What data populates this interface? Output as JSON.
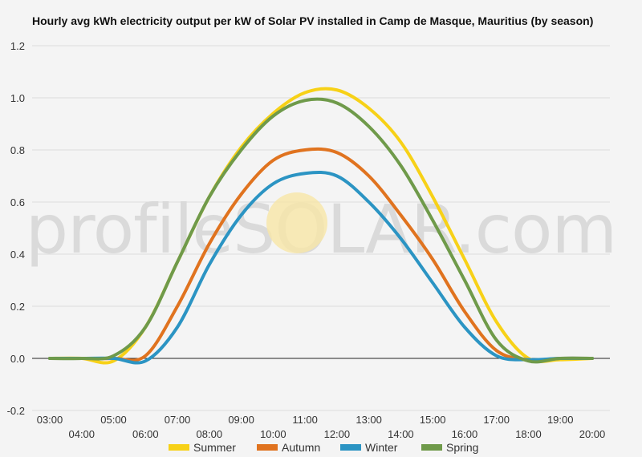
{
  "chart_data": {
    "type": "line",
    "title": "Hourly avg kWh electricity output per kW of Solar PV installed in Camp de Masque, Mauritius (by season)",
    "xlabel": "",
    "ylabel": "",
    "ylim": [
      -0.2,
      1.2
    ],
    "yticks": [
      "1.2",
      "1.0",
      "0.8",
      "0.6",
      "0.4",
      "0.2",
      "0.0",
      "-0.2"
    ],
    "xticks": [
      "03:00",
      "04:00",
      "05:00",
      "06:00",
      "07:00",
      "08:00",
      "09:00",
      "10:00",
      "11:00",
      "12:00",
      "13:00",
      "14:00",
      "15:00",
      "16:00",
      "17:00",
      "18:00",
      "19:00",
      "20:00"
    ],
    "grid": true,
    "legend_position": "bottom",
    "watermark": "profileSOLAR.com",
    "x": [
      3,
      4,
      5,
      6,
      7,
      8,
      9,
      10,
      11,
      12,
      13,
      14,
      15,
      16,
      17,
      18,
      19,
      20
    ],
    "series": [
      {
        "name": "Summer",
        "color": "#f7d117",
        "values": [
          0,
          0,
          -0.01,
          0.12,
          0.37,
          0.62,
          0.81,
          0.94,
          1.02,
          1.03,
          0.96,
          0.83,
          0.62,
          0.38,
          0.14,
          0.0,
          -0.005,
          0
        ]
      },
      {
        "name": "Autumn",
        "color": "#e0731f",
        "values": [
          0,
          0,
          0,
          0.01,
          0.2,
          0.44,
          0.63,
          0.76,
          0.8,
          0.79,
          0.7,
          0.55,
          0.38,
          0.18,
          0.03,
          -0.005,
          0,
          0
        ]
      },
      {
        "name": "Winter",
        "color": "#2b94c3",
        "values": [
          0,
          0,
          0,
          -0.01,
          0.12,
          0.36,
          0.55,
          0.67,
          0.71,
          0.7,
          0.6,
          0.46,
          0.29,
          0.12,
          0.01,
          -0.005,
          0,
          0
        ]
      },
      {
        "name": "Spring",
        "color": "#6f9a4a",
        "values": [
          0,
          0,
          0.01,
          0.12,
          0.37,
          0.62,
          0.8,
          0.93,
          0.99,
          0.98,
          0.89,
          0.74,
          0.53,
          0.3,
          0.07,
          -0.01,
          0,
          0
        ]
      }
    ]
  }
}
